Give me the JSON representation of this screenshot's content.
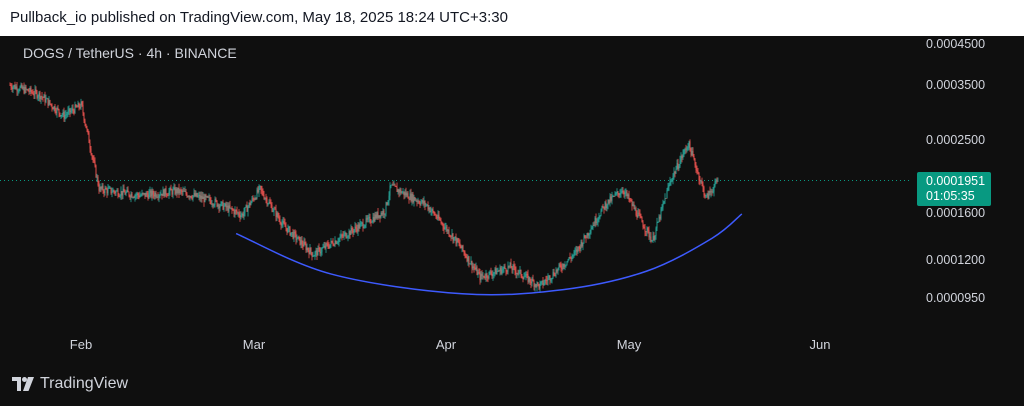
{
  "header": {
    "published_text": "Pullback_io published on TradingView.com, May 18, 2025 18:24 UTC+3:30"
  },
  "chart_data": {
    "type": "candlestick",
    "symbol_label": "DOGS / TetherUS · 4h · BINANCE",
    "price_scale": "log",
    "y_tick_labels": [
      "0.0004500",
      "0.0003500",
      "0.0002500",
      "0.0001600",
      "0.0001200",
      "0.0000950"
    ],
    "x_tick_labels": [
      "Feb",
      "Mar",
      "Apr",
      "May",
      "Jun"
    ],
    "last_price": "0.0001951",
    "countdown": "01:05:35",
    "grid": false,
    "approx_price_path": [
      {
        "date": "2025-01-19",
        "price": 0.00035
      },
      {
        "date": "2025-01-24",
        "price": 0.00033
      },
      {
        "date": "2025-01-28",
        "price": 0.00029
      },
      {
        "date": "2025-01-31",
        "price": 0.00031
      },
      {
        "date": "2025-02-03",
        "price": 0.000185
      },
      {
        "date": "2025-02-10",
        "price": 0.000178
      },
      {
        "date": "2025-02-16",
        "price": 0.000183
      },
      {
        "date": "2025-02-22",
        "price": 0.000172
      },
      {
        "date": "2025-02-27",
        "price": 0.000158
      },
      {
        "date": "2025-03-02",
        "price": 0.000185
      },
      {
        "date": "2025-03-06",
        "price": 0.000148
      },
      {
        "date": "2025-03-11",
        "price": 0.000124
      },
      {
        "date": "2025-03-17",
        "price": 0.000142
      },
      {
        "date": "2025-03-23",
        "price": 0.000162
      },
      {
        "date": "2025-03-24",
        "price": 0.000188
      },
      {
        "date": "2025-03-30",
        "price": 0.000168
      },
      {
        "date": "2025-04-04",
        "price": 0.000135
      },
      {
        "date": "2025-04-08",
        "price": 0.000108
      },
      {
        "date": "2025-04-13",
        "price": 0.000115
      },
      {
        "date": "2025-04-18",
        "price": 0.000102
      },
      {
        "date": "2025-04-24",
        "price": 0.000125
      },
      {
        "date": "2025-04-29",
        "price": 0.000168
      },
      {
        "date": "2025-05-02",
        "price": 0.000185
      },
      {
        "date": "2025-05-07",
        "price": 0.000135
      },
      {
        "date": "2025-05-10",
        "price": 0.000195
      },
      {
        "date": "2025-05-13",
        "price": 0.000245
      },
      {
        "date": "2025-05-16",
        "price": 0.000175
      },
      {
        "date": "2025-05-18",
        "price": 0.0001951
      }
    ],
    "annotations": [
      {
        "type": "curve",
        "color": "#3d5afe",
        "points": [
          {
            "date": "2025-02-26",
            "price": 0.000141
          },
          {
            "date": "2025-03-14",
            "price": 0.00011
          },
          {
            "date": "2025-04-05",
            "price": 9.75e-05
          },
          {
            "date": "2025-04-22",
            "price": 0.0001
          },
          {
            "date": "2025-05-06",
            "price": 0.000112
          },
          {
            "date": "2025-05-17",
            "price": 0.000137
          },
          {
            "date": "2025-05-22",
            "price": 0.000159
          }
        ]
      }
    ],
    "colors": {
      "up": "#26a69a",
      "down": "#ef5350",
      "last_price": "#089981"
    }
  },
  "footer": {
    "brand": "TradingView"
  },
  "icons": {
    "logo": "tradingview-logo-icon"
  }
}
